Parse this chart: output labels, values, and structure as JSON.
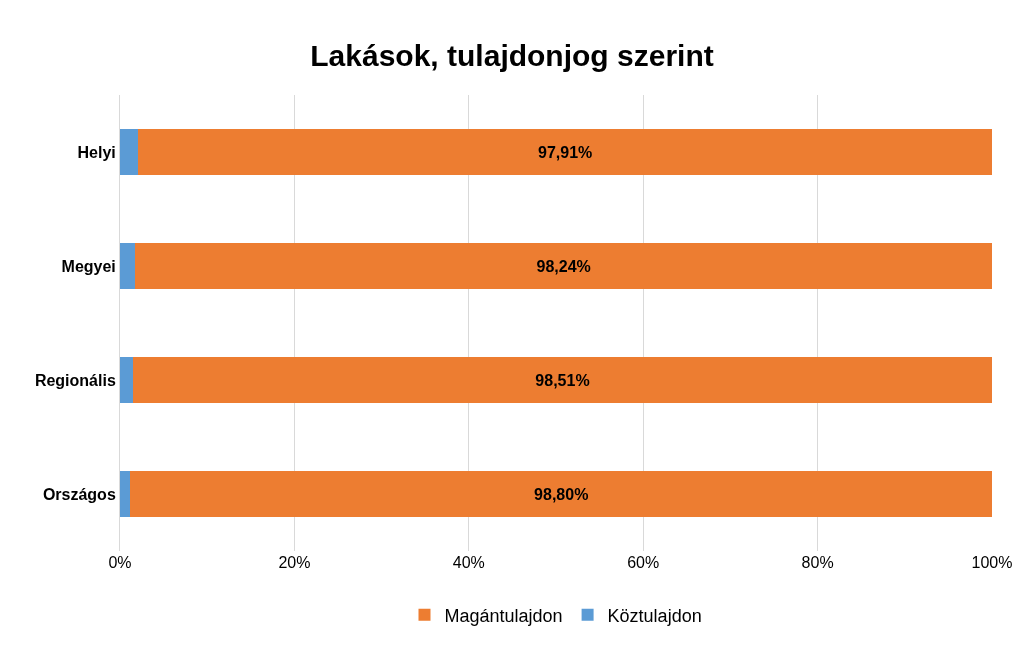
{
  "chart_data": {
    "type": "bar",
    "title": "Lakások, tulajdonjog szerint",
    "orientation": "horizontal",
    "stacked": true,
    "categories": [
      "Helyi",
      "Megyei",
      "Regionális",
      "Országos"
    ],
    "series": [
      {
        "name": "Köztulajdon",
        "color": "#5b9bd5",
        "values": [
          2.09,
          1.76,
          1.49,
          1.2
        ]
      },
      {
        "name": "Magántulajdon",
        "color": "#ed7d31",
        "values": [
          97.91,
          98.24,
          98.51,
          98.8
        ],
        "value_labels": [
          "97,91%",
          "98,24%",
          "98,51%",
          "98,80%"
        ]
      }
    ],
    "xlim": [
      0,
      100
    ],
    "xticks": [
      {
        "value": 0,
        "label": "0%"
      },
      {
        "value": 20,
        "label": "20%"
      },
      {
        "value": 40,
        "label": "40%"
      },
      {
        "value": 60,
        "label": "60%"
      },
      {
        "value": 80,
        "label": "80%"
      },
      {
        "value": 100,
        "label": "100%"
      }
    ],
    "grid": "x",
    "legend": "bottom"
  }
}
